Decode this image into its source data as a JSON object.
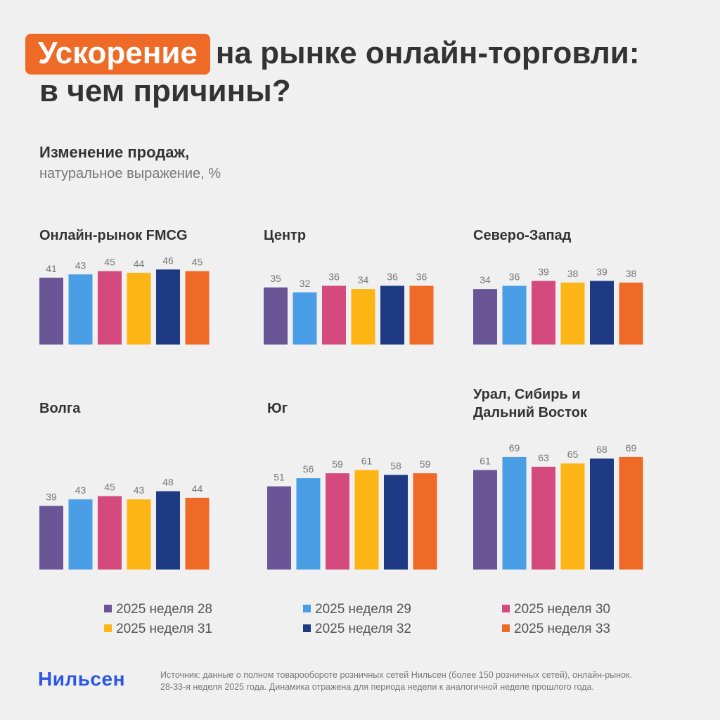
{
  "title": {
    "highlight": "Ускорение",
    "rest_line1": "на рынке онлайн-торговли:",
    "line2": "в чем причины?"
  },
  "subtitle": {
    "bold": "Изменение продаж,",
    "light": "натуральное выражение, %"
  },
  "series": [
    {
      "name": "2025 неделя 28",
      "color": "#6a5597"
    },
    {
      "name": "2025 неделя 29",
      "color": "#4a9ee6"
    },
    {
      "name": "2025 неделя 30",
      "color": "#d44a7e"
    },
    {
      "name": "2025 неделя 31",
      "color": "#fdb515"
    },
    {
      "name": "2025 неделя 32",
      "color": "#1f3a85"
    },
    {
      "name": "2025 неделя 33",
      "color": "#ee6a26"
    }
  ],
  "chart_data": [
    {
      "type": "bar",
      "title": "Онлайн-рынок FMCG",
      "values": [
        41,
        43,
        45,
        44,
        46,
        45
      ]
    },
    {
      "type": "bar",
      "title": "Центр",
      "values": [
        35,
        32,
        36,
        34,
        36,
        36
      ]
    },
    {
      "type": "bar",
      "title": "Северо-Запад",
      "values": [
        34,
        36,
        39,
        38,
        39,
        38
      ]
    },
    {
      "type": "bar",
      "title": "Волга",
      "values": [
        39,
        43,
        45,
        43,
        48,
        44
      ]
    },
    {
      "type": "bar",
      "title": "Юг",
      "values": [
        51,
        56,
        59,
        61,
        58,
        59
      ]
    },
    {
      "type": "bar",
      "title": "Урал, Сибирь и Дальний Восток",
      "title_lines": [
        "Урал, Сибирь и",
        "Дальний Восток"
      ],
      "values": [
        61,
        69,
        63,
        65,
        68,
        69
      ]
    }
  ],
  "footer": {
    "logo": "Нильсен",
    "source_line1": "Источник: данные о полном товарообороте розничных сетей Нильсен (более 150 розничных сетей), онлайн-рынок.",
    "source_line2": "28-33-я неделя 2025 года. Динамика отражена для периода недели к аналогичной неделе прошлого года."
  }
}
